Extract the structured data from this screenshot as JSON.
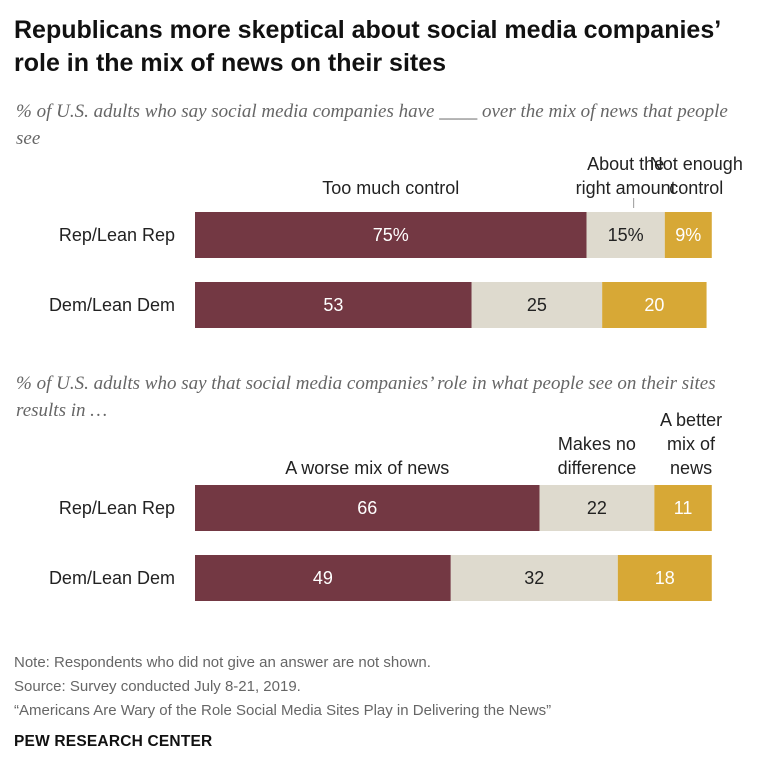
{
  "title": "Republicans more skeptical about social media companies’ role in the mix of news on their sites",
  "chart_data": [
    {
      "type": "bar",
      "stacked": true,
      "orientation": "horizontal",
      "subtitle": "% of U.S. adults who say social media companies have ____ over the mix of news that people see",
      "categories": [
        "Rep/Lean Rep",
        "Dem/Lean Dem"
      ],
      "series": [
        {
          "name": "Too much control",
          "values": [
            75,
            53
          ],
          "labels": [
            "75%",
            "53"
          ],
          "color": "#733843"
        },
        {
          "name": "About the right amount",
          "values": [
            15,
            25
          ],
          "labels": [
            "15%",
            "25"
          ],
          "color": "#dedace"
        },
        {
          "name": "Not enough control",
          "values": [
            9,
            20
          ],
          "labels": [
            "9%",
            "20"
          ],
          "color": "#d7a836"
        }
      ]
    },
    {
      "type": "bar",
      "stacked": true,
      "orientation": "horizontal",
      "subtitle": "% of U.S. adults who say that social media companies’ role in what people see on their sites results in …",
      "categories": [
        "Rep/Lean Rep",
        "Dem/Lean Dem"
      ],
      "series": [
        {
          "name": "A worse mix of news",
          "values": [
            66,
            49
          ],
          "labels": [
            "66",
            "49"
          ],
          "color": "#733843"
        },
        {
          "name": "Makes no difference",
          "values": [
            22,
            32
          ],
          "labels": [
            "22",
            "32"
          ],
          "color": "#dedace"
        },
        {
          "name": "A better mix of news",
          "values": [
            11,
            18
          ],
          "labels": [
            "11",
            "18"
          ],
          "color": "#d7a836"
        }
      ]
    }
  ],
  "footer": {
    "note": "Note: Respondents who did not give an answer are not shown.",
    "source": "Source: Survey conducted July 8-21, 2019.",
    "report": "“Americans Are Wary of the Role Social Media Sites Play in Delivering the News”",
    "brand": "PEW RESEARCH CENTER"
  }
}
